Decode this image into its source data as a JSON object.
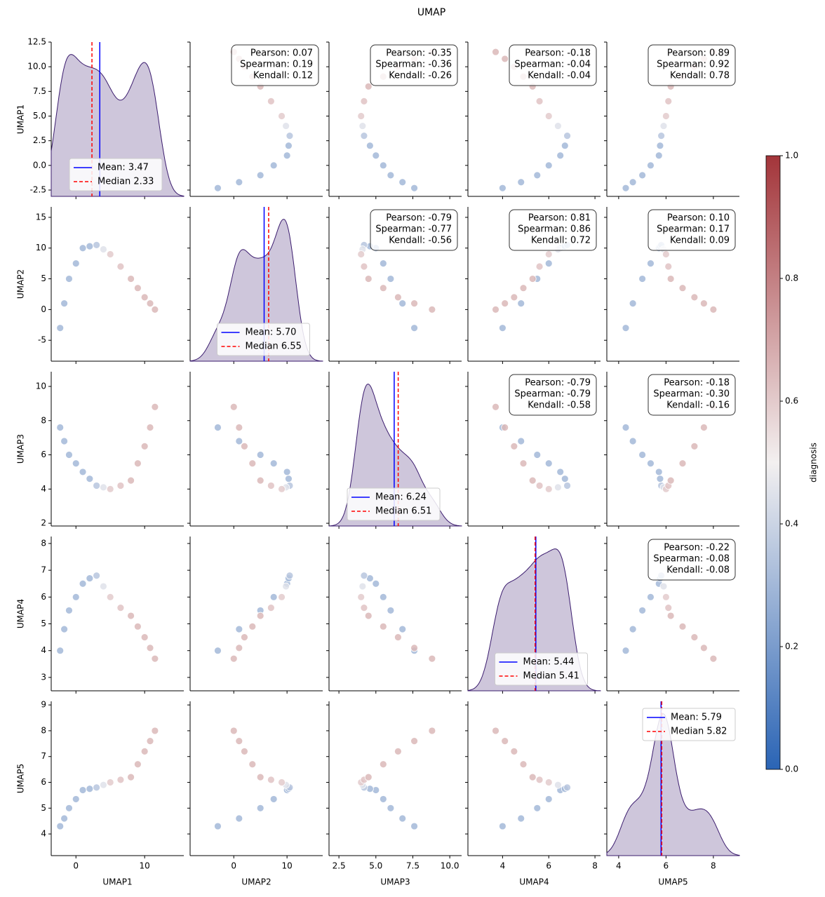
{
  "chart_data": {
    "type": "pairplot",
    "title": "UMAP",
    "columns": [
      {
        "name": "UMAP1",
        "values": [
          -2.3,
          -1.7,
          -1,
          0,
          1,
          2,
          3,
          4,
          5,
          6.5,
          8,
          9,
          10,
          10.8,
          11.5
        ],
        "xlim": [
          -3.6,
          15.7
        ],
        "xticks": [
          0,
          10
        ],
        "ylim": [
          -3.14,
          12.5
        ],
        "yticks": [
          -2.5,
          {
            "value": 0,
            "label": "0.0"
          },
          2.5,
          {
            "value": 5,
            "label": "5.0"
          },
          7.5,
          {
            "value": 10,
            "label": "10.0"
          },
          12.5
        ],
        "mean": 3.47,
        "median": 2.33,
        "mean_label": "Mean: 3.47",
        "median_label": "Median 2.33",
        "legend_loc": "lower left"
      },
      {
        "name": "UMAP2",
        "values": [
          -3,
          1,
          5,
          7.5,
          10,
          10.3,
          10.5,
          9.8,
          9,
          7,
          5,
          3.5,
          2,
          1,
          0
        ],
        "xlim": [
          -8.2,
          16.7
        ],
        "xticks": [
          0,
          10
        ],
        "ylim": [
          -8.4,
          16.7
        ],
        "yticks": [
          -5,
          0,
          5,
          10,
          15
        ],
        "mean": 5.7,
        "median": 6.55,
        "mean_label": "Mean: 5.70",
        "median_label": "Median 6.55",
        "legend_loc": "lower center"
      },
      {
        "name": "UMAP3",
        "values": [
          7.6,
          6.8,
          6,
          5.5,
          5,
          4.6,
          4.2,
          4.1,
          4,
          4.2,
          4.5,
          5.5,
          6.5,
          7.6,
          8.8
        ],
        "xlim": [
          1.83,
          10.8
        ],
        "xticks": [
          2.5,
          {
            "value": 5,
            "label": "5.0"
          },
          7.5,
          {
            "value": 10,
            "label": "10.0"
          }
        ],
        "ylim": [
          1.84,
          10.86
        ],
        "yticks": [
          2,
          4,
          6,
          8,
          10
        ],
        "mean": 6.24,
        "median": 6.51,
        "mean_label": "Mean: 6.24",
        "median_label": "Median 6.51",
        "legend_loc": "lower left"
      },
      {
        "name": "UMAP4",
        "values": [
          4.0,
          4.8,
          5.5,
          6.0,
          6.5,
          6.7,
          6.8,
          6.4,
          6.0,
          5.6,
          5.3,
          4.9,
          4.5,
          4.1,
          3.7
        ],
        "xlim": [
          2.5,
          8.24
        ],
        "xticks": [
          4,
          6,
          8
        ],
        "ylim": [
          2.5,
          8.26
        ],
        "yticks": [
          3,
          4,
          5,
          6,
          7,
          8
        ],
        "mean": 5.44,
        "median": 5.41,
        "mean_label": "Mean: 5.44",
        "median_label": "Median 5.41",
        "legend_loc": "lower center"
      },
      {
        "name": "UMAP5",
        "values": [
          4.3,
          4.6,
          5.0,
          5.35,
          5.7,
          5.75,
          5.8,
          5.9,
          6.0,
          6.1,
          6.2,
          6.7,
          7.2,
          7.6,
          8.0
        ],
        "xlim": [
          3.5,
          9.1
        ],
        "xticks": [
          4,
          6,
          8
        ],
        "ylim": [
          3.16,
          9.14
        ],
        "yticks": [
          4,
          5,
          6,
          7,
          8,
          9
        ],
        "mean": 5.79,
        "median": 5.82,
        "mean_label": "Mean: 5.79",
        "median_label": "Median 5.82",
        "legend_loc": "upper right"
      }
    ],
    "hue": {
      "name": "diagnosis",
      "values": [
        0.3,
        0.3,
        0.3,
        0.3,
        0.3,
        0.3,
        0.35,
        0.45,
        0.6,
        0.62,
        0.65,
        0.65,
        0.65,
        0.65,
        0.65
      ],
      "clim": [
        0,
        1
      ],
      "cticks": [
        {
          "value": 0,
          "label": "0.0"
        },
        0.2,
        0.4,
        0.6,
        0.8,
        {
          "value": 1,
          "label": "1.0"
        }
      ],
      "colors": [
        "#2a64b5",
        "#f3f0f0",
        "#a3353a"
      ]
    },
    "correlations": [
      [
        [
          "Pearson: 0.07",
          "Spearman: 0.19",
          "Kendall: 0.12"
        ],
        [
          "Pearson: -0.35",
          "Spearman: -0.36",
          "Kendall: -0.26"
        ],
        [
          "Pearson: -0.18",
          "Spearman: -0.04",
          "Kendall: -0.04"
        ],
        [
          "Pearson: 0.89",
          "Spearman: 0.92",
          "Kendall: 0.78"
        ]
      ],
      [
        [
          "Pearson: -0.79",
          "Spearman: -0.77",
          "Kendall: -0.56"
        ],
        [
          "Pearson: 0.81",
          "Spearman: 0.86",
          "Kendall: 0.72"
        ],
        [
          "Pearson: 0.10",
          "Spearman: 0.17",
          "Kendall: 0.09"
        ]
      ],
      [
        [
          "Pearson: -0.79",
          "Spearman: -0.79",
          "Kendall: -0.58"
        ],
        [
          "Pearson: -0.18",
          "Spearman: -0.30",
          "Kendall: -0.16"
        ]
      ],
      [
        [
          "Pearson: -0.22",
          "Spearman: -0.08",
          "Kendall: -0.08"
        ]
      ]
    ],
    "kde_color": "#3b1c6e",
    "mean_color": "blue",
    "median_color": "red"
  }
}
